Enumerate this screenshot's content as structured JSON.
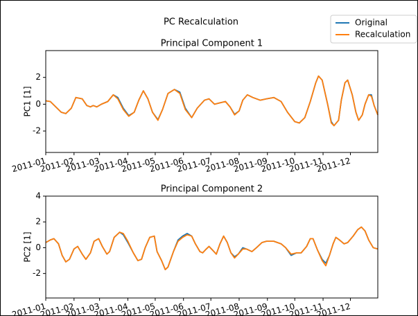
{
  "suptitle": "PC Recalculation",
  "chart_data": [
    {
      "type": "line",
      "title": "Principal Component 1",
      "ylabel": "PC1 [1]",
      "x": [
        0,
        5,
        11,
        17,
        22,
        28,
        33,
        40,
        45,
        49,
        52,
        56,
        61,
        68,
        74,
        79,
        85,
        91,
        97,
        102,
        107,
        112,
        117,
        123,
        128,
        134,
        141,
        147,
        153,
        160,
        166,
        174,
        179,
        185,
        191,
        197,
        202,
        207,
        212,
        216,
        221,
        227,
        235,
        242,
        250,
        258,
        265,
        273,
        278,
        284,
        290,
        296,
        299,
        303,
        309,
        313,
        316,
        321,
        324,
        328,
        331,
        336,
        340,
        343,
        347,
        350,
        354,
        357,
        360,
        364
      ],
      "series": [
        {
          "name": "Original",
          "color": "#1f77b4",
          "values": [
            0.25,
            0.2,
            -0.2,
            -0.6,
            -0.7,
            -0.3,
            0.5,
            0.4,
            -0.1,
            -0.2,
            -0.1,
            -0.2,
            0.0,
            0.2,
            0.7,
            0.5,
            -0.3,
            -0.85,
            -0.6,
            0.3,
            1.0,
            0.4,
            -0.6,
            -1.15,
            -0.4,
            0.8,
            1.1,
            0.9,
            -0.3,
            -1.0,
            -0.3,
            0.3,
            0.4,
            0.0,
            0.1,
            0.2,
            -0.2,
            -0.75,
            -0.5,
            0.3,
            0.7,
            0.5,
            0.3,
            0.4,
            0.5,
            0.2,
            -0.6,
            -1.3,
            -1.4,
            -1.0,
            0.2,
            1.6,
            2.1,
            1.8,
            0.0,
            -1.3,
            -1.6,
            -1.2,
            0.3,
            1.6,
            1.8,
            0.7,
            -0.6,
            -1.2,
            -0.8,
            0.0,
            0.7,
            0.7,
            -0.1,
            -0.8
          ]
        },
        {
          "name": "Recalculation",
          "color": "#ff7f0e",
          "values": [
            0.25,
            0.2,
            -0.2,
            -0.6,
            -0.7,
            -0.3,
            0.5,
            0.4,
            -0.1,
            -0.2,
            -0.1,
            -0.2,
            0.0,
            0.2,
            0.7,
            0.4,
            -0.4,
            -0.9,
            -0.6,
            0.3,
            1.0,
            0.4,
            -0.6,
            -1.2,
            -0.4,
            0.8,
            1.1,
            0.8,
            -0.4,
            -1.0,
            -0.3,
            0.3,
            0.4,
            0.0,
            0.1,
            0.2,
            -0.2,
            -0.8,
            -0.5,
            0.3,
            0.7,
            0.5,
            0.3,
            0.4,
            0.5,
            0.2,
            -0.6,
            -1.3,
            -1.4,
            -1.0,
            0.2,
            1.6,
            2.1,
            1.8,
            0.0,
            -1.4,
            -1.6,
            -1.2,
            0.3,
            1.6,
            1.8,
            0.7,
            -0.6,
            -1.2,
            -0.8,
            0.0,
            0.7,
            0.6,
            -0.1,
            -0.8
          ]
        }
      ],
      "xlim": [
        0,
        364
      ],
      "xticks": [
        {
          "value": 0,
          "label": "2011-01"
        },
        {
          "value": 31,
          "label": "2011-02"
        },
        {
          "value": 59,
          "label": "2011-03"
        },
        {
          "value": 90,
          "label": "2011-04"
        },
        {
          "value": 120,
          "label": "2011-05"
        },
        {
          "value": 151,
          "label": "2011-06"
        },
        {
          "value": 181,
          "label": "2011-07"
        },
        {
          "value": 212,
          "label": "2011-08"
        },
        {
          "value": 243,
          "label": "2011-09"
        },
        {
          "value": 273,
          "label": "2011-10"
        },
        {
          "value": 304,
          "label": "2011-11"
        },
        {
          "value": 334,
          "label": "2011-12"
        }
      ],
      "ylim": [
        -3.6,
        4.0
      ],
      "yticks": [
        -2,
        0,
        2
      ]
    },
    {
      "type": "line",
      "title": "Principal Component 2",
      "ylabel": "PC2 [1]",
      "x": [
        0,
        5,
        9,
        14,
        18,
        22,
        26,
        31,
        35,
        40,
        44,
        49,
        53,
        58,
        62,
        67,
        70,
        75,
        81,
        85,
        90,
        96,
        101,
        105,
        109,
        114,
        119,
        122,
        127,
        131,
        134,
        140,
        145,
        150,
        155,
        160,
        164,
        169,
        172,
        176,
        179,
        183,
        187,
        191,
        195,
        199,
        203,
        207,
        211,
        216,
        220,
        226,
        231,
        237,
        242,
        250,
        258,
        263,
        269,
        275,
        280,
        286,
        290,
        293,
        298,
        303,
        307,
        311,
        315,
        318,
        322,
        327,
        331,
        337,
        342,
        346,
        350,
        354,
        359,
        364
      ],
      "series": [
        {
          "name": "Original",
          "color": "#1f77b4",
          "values": [
            0.4,
            0.6,
            0.7,
            0.3,
            -0.6,
            -1.1,
            -0.9,
            -0.1,
            0.1,
            -0.5,
            -0.9,
            -0.4,
            0.5,
            0.7,
            0.1,
            -0.5,
            -0.3,
            0.8,
            1.2,
            1.0,
            0.4,
            -0.4,
            -1.0,
            -0.9,
            0.0,
            0.8,
            0.9,
            -0.3,
            -1.0,
            -1.7,
            -1.5,
            -0.3,
            0.6,
            0.9,
            1.1,
            0.9,
            0.3,
            -0.3,
            -0.4,
            -0.1,
            0.1,
            -0.2,
            -0.5,
            0.3,
            0.9,
            0.4,
            -0.4,
            -0.7,
            -0.5,
            0.0,
            -0.1,
            -0.3,
            0.0,
            0.4,
            0.5,
            0.5,
            0.3,
            0.0,
            -0.6,
            -0.4,
            -0.4,
            0.1,
            0.7,
            0.7,
            -0.2,
            -0.9,
            -1.2,
            -0.6,
            0.3,
            0.8,
            0.6,
            0.3,
            0.4,
            0.9,
            1.4,
            1.6,
            1.3,
            0.6,
            0.0,
            -0.1
          ]
        },
        {
          "name": "Recalculation",
          "color": "#ff7f0e",
          "values": [
            0.4,
            0.6,
            0.7,
            0.3,
            -0.6,
            -1.1,
            -0.9,
            -0.1,
            0.1,
            -0.5,
            -0.9,
            -0.4,
            0.5,
            0.7,
            0.1,
            -0.5,
            -0.3,
            0.8,
            1.2,
            1.1,
            0.5,
            -0.4,
            -1.0,
            -0.9,
            0.0,
            0.8,
            0.9,
            -0.3,
            -1.0,
            -1.7,
            -1.5,
            -0.3,
            0.5,
            0.8,
            1.0,
            0.9,
            0.3,
            -0.3,
            -0.4,
            -0.1,
            0.1,
            -0.2,
            -0.5,
            0.3,
            0.9,
            0.4,
            -0.4,
            -0.8,
            -0.5,
            -0.1,
            -0.1,
            -0.3,
            0.0,
            0.4,
            0.5,
            0.5,
            0.3,
            0.0,
            -0.5,
            -0.4,
            -0.4,
            0.1,
            0.7,
            0.7,
            -0.2,
            -1.0,
            -1.4,
            -0.6,
            0.3,
            0.8,
            0.6,
            0.3,
            0.4,
            0.9,
            1.4,
            1.6,
            1.3,
            0.6,
            0.0,
            -0.1
          ]
        }
      ],
      "xlim": [
        0,
        364
      ],
      "xticks": [
        {
          "value": 0,
          "label": "2011-01"
        },
        {
          "value": 31,
          "label": "2011-02"
        },
        {
          "value": 59,
          "label": "2011-03"
        },
        {
          "value": 90,
          "label": "2011-04"
        },
        {
          "value": 120,
          "label": "2011-05"
        },
        {
          "value": 151,
          "label": "2011-06"
        },
        {
          "value": 181,
          "label": "2011-07"
        },
        {
          "value": 212,
          "label": "2011-08"
        },
        {
          "value": 243,
          "label": "2011-09"
        },
        {
          "value": 273,
          "label": "2011-10"
        },
        {
          "value": 304,
          "label": "2011-11"
        },
        {
          "value": 334,
          "label": "2011-12"
        }
      ],
      "ylim": [
        -3.9,
        4.0
      ],
      "yticks": [
        -2,
        0,
        2,
        4
      ]
    }
  ]
}
